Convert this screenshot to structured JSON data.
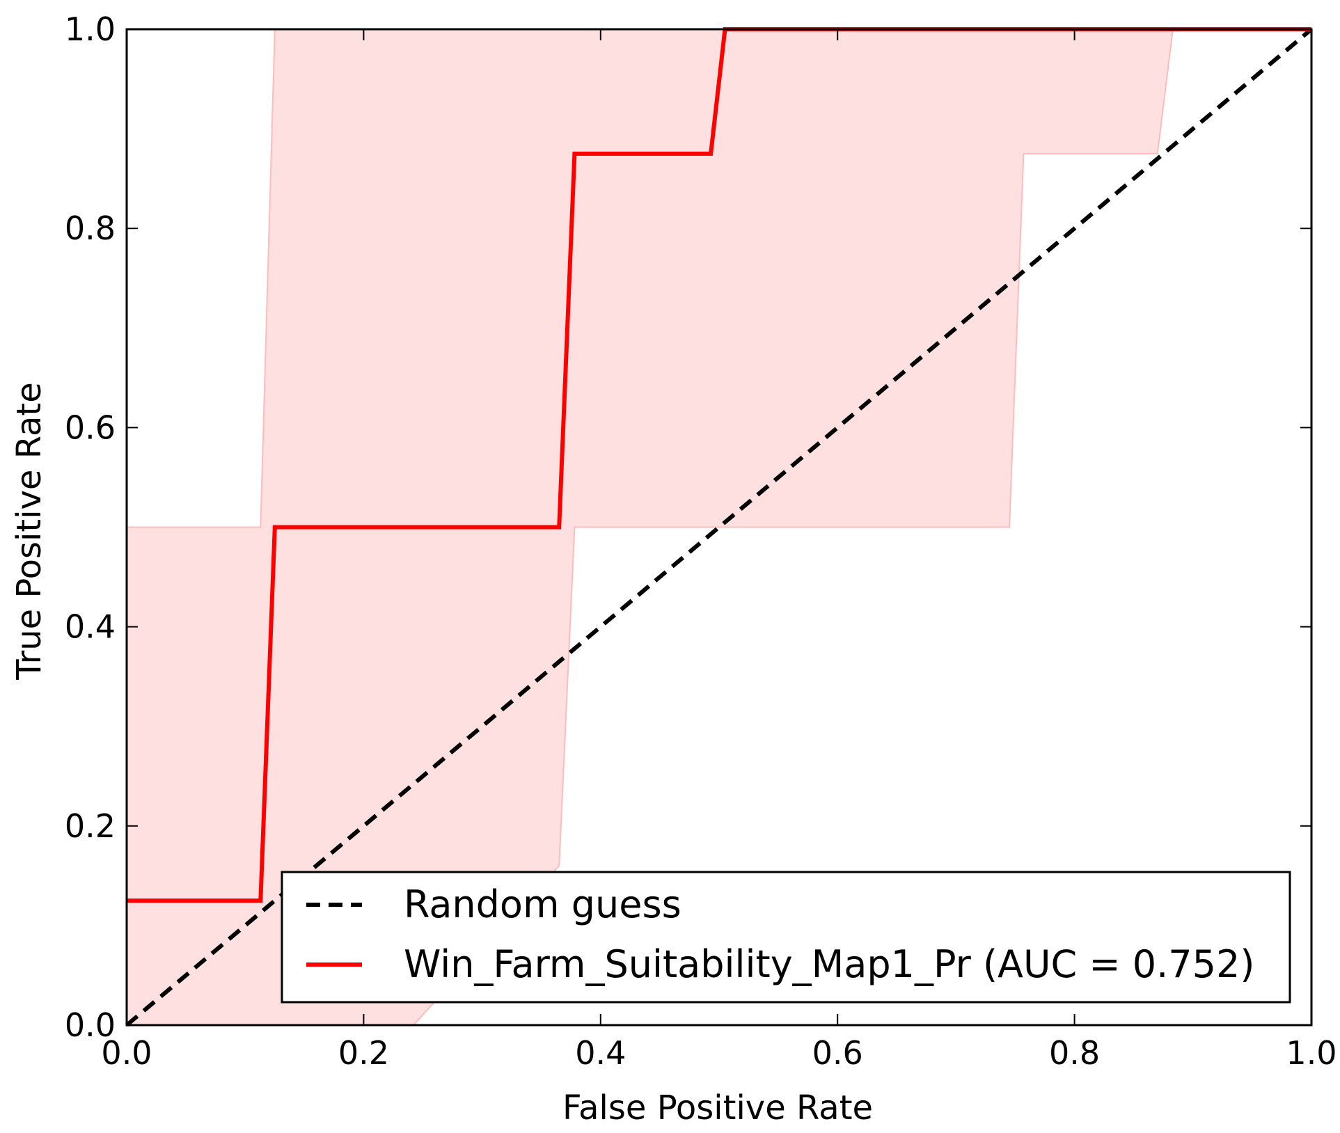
{
  "chart_data": {
    "type": "line",
    "title": "",
    "xlabel": "False Positive Rate",
    "ylabel": "True Positive Rate",
    "xlim": [
      0.0,
      1.0
    ],
    "ylim": [
      0.0,
      1.0
    ],
    "xticks": [
      "0.0",
      "0.2",
      "0.4",
      "0.6",
      "0.8",
      "1.0"
    ],
    "yticks": [
      "0.0",
      "0.2",
      "0.4",
      "0.6",
      "0.8",
      "1.0"
    ],
    "grid": false,
    "legend_position": "lower-right",
    "colors": {
      "roc": "#ff0000",
      "band": "#ffe0e0",
      "band_edge": "#ffbcbc",
      "diagonal": "#000000"
    },
    "series": [
      {
        "name": "Random guess",
        "style": "dashed",
        "x": [
          0.0,
          1.0
        ],
        "y": [
          0.0,
          1.0
        ]
      },
      {
        "name": "Win_Farm_Suitability_Map1_Pr (AUC = 0.752)",
        "style": "solid",
        "x": [
          0.0,
          0.113,
          0.125,
          0.365,
          0.378,
          0.493,
          0.505,
          1.0
        ],
        "y": [
          0.125,
          0.125,
          0.5,
          0.5,
          0.875,
          0.875,
          1.0,
          1.0
        ]
      }
    ],
    "confidence_band": {
      "upper": {
        "x": [
          0.0,
          0.113,
          0.125,
          1.0
        ],
        "y": [
          0.5,
          0.5,
          1.0,
          1.0
        ]
      },
      "lower": {
        "x": [
          0.0,
          0.242,
          0.365,
          0.378,
          0.745,
          0.757,
          0.87,
          0.883,
          1.0
        ],
        "y": [
          0.0,
          0.0,
          0.16,
          0.5,
          0.5,
          0.875,
          0.875,
          1.0,
          1.0
        ]
      }
    }
  }
}
